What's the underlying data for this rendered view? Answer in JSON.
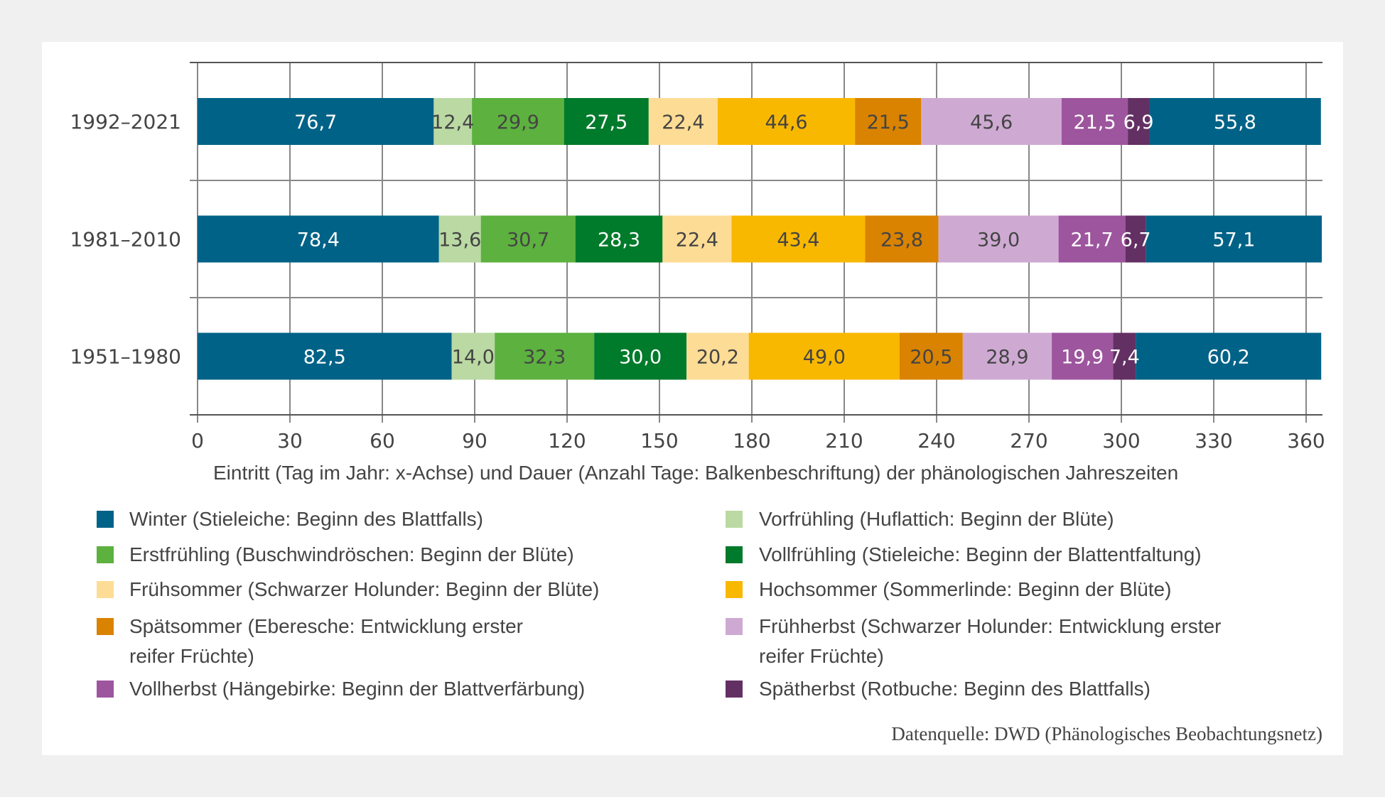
{
  "chart_data": {
    "type": "bar",
    "orientation": "horizontal",
    "stacked": true,
    "categories": [
      "1992–2021",
      "1981–2010",
      "1951–1980"
    ],
    "xlabel": "Eintritt (Tag im Jahr: x-Achse) und Dauer (Anzahl Tage: Balkenbeschriftung) der phänologischen Jahreszeiten",
    "ylabel": "",
    "xlim": [
      0,
      365
    ],
    "xticks": [
      "0",
      "30",
      "60",
      "90",
      "120",
      "150",
      "180",
      "210",
      "240",
      "270",
      "300",
      "330",
      "360"
    ],
    "xtick_values": [
      0,
      30,
      60,
      90,
      120,
      150,
      180,
      210,
      240,
      270,
      300,
      330,
      360
    ],
    "grid": true,
    "legend_position": "bottom",
    "series": [
      {
        "name": "Winter (Stieleiche: Beginn des Blattfalls)",
        "color": "#006287",
        "label_color": "#ffffff",
        "values": [
          76.7,
          78.4,
          82.5
        ],
        "labels": [
          "76,7",
          "78,4",
          "82,5"
        ]
      },
      {
        "name": "Vorfrühling (Huflattich: Beginn der Blüte)",
        "color": "#bad9a3",
        "label_color": "#444444",
        "values": [
          12.4,
          13.6,
          14.0
        ],
        "labels": [
          "12,4",
          "13,6",
          "14,0"
        ]
      },
      {
        "name": "Erstfrühling (Buschwindröschen: Beginn der Blüte)",
        "color": "#5db13f",
        "label_color": "#444444",
        "values": [
          29.9,
          30.7,
          32.3
        ],
        "labels": [
          "29,9",
          "30,7",
          "32,3"
        ]
      },
      {
        "name": "Vollfrühling (Stieleiche: Beginn der Blattentfaltung)",
        "color": "#007a2b",
        "label_color": "#ffffff",
        "values": [
          27.5,
          28.3,
          30.0
        ],
        "labels": [
          "27,5",
          "28,3",
          "30,0"
        ]
      },
      {
        "name": "Frühsommer (Schwarzer Holunder: Beginn der Blüte)",
        "color": "#fddc95",
        "label_color": "#444444",
        "values": [
          22.4,
          22.4,
          20.2
        ],
        "labels": [
          "22,4",
          "22,4",
          "20,2"
        ]
      },
      {
        "name": "Hochsommer (Sommerlinde: Beginn der Blüte)",
        "color": "#f9b800",
        "label_color": "#444444",
        "values": [
          44.6,
          43.4,
          49.0
        ],
        "labels": [
          "44,6",
          "43,4",
          "49,0"
        ]
      },
      {
        "name": "Spätsommer (Eberesche: Entwicklung erster reifer Früchte)",
        "color": "#d98300",
        "label_color": "#444444",
        "values": [
          21.5,
          23.8,
          20.5
        ],
        "labels": [
          "21,5",
          "23,8",
          "20,5"
        ]
      },
      {
        "name": "Frühherbst (Schwarzer Holunder: Entwicklung erster reifer Früchte)",
        "color": "#ceaad3",
        "label_color": "#444444",
        "values": [
          45.6,
          39.0,
          28.9
        ],
        "labels": [
          "45,6",
          "39,0",
          "28,9"
        ]
      },
      {
        "name": "Vollherbst (Hängebirke: Beginn der Blattverfärbung)",
        "color": "#9d559e",
        "label_color": "#ffffff",
        "values": [
          21.5,
          21.7,
          19.9
        ],
        "labels": [
          "21,5",
          "21,7",
          "19,9"
        ]
      },
      {
        "name": "Spätherbst (Rotbuche: Beginn des Blattfalls)",
        "color": "#633063",
        "label_color": "#ffffff",
        "values": [
          6.9,
          6.7,
          7.4
        ],
        "labels": [
          "6,9",
          "6,7",
          "7,4"
        ]
      },
      {
        "name": "Winter (Stieleiche: Beginn des Blattfalls)",
        "color": "#006287",
        "label_color": "#ffffff",
        "values": [
          55.8,
          57.1,
          60.2
        ],
        "labels": [
          "55,8",
          "57,1",
          "60,2"
        ],
        "legend": false
      }
    ],
    "source": "Datenquelle: DWD (Phänologisches Beobachtungsnetz)"
  },
  "legend": {
    "left": [
      {
        "lines": [
          "Winter (Stieleiche: Beginn des Blattfalls)"
        ],
        "color": "#006287"
      },
      {
        "lines": [
          "Erstfrühling (Buschwindröschen: Beginn der Blüte)"
        ],
        "color": "#5db13f"
      },
      {
        "lines": [
          "Frühsommer (Schwarzer Holunder: Beginn der Blüte)"
        ],
        "color": "#fddc95"
      },
      {
        "lines": [
          "Spätsommer (Eberesche: Entwicklung erster",
          "reifer Früchte)"
        ],
        "color": "#d98300"
      },
      {
        "lines": [
          "Vollherbst (Hängebirke: Beginn der Blattverfärbung)"
        ],
        "color": "#9d559e"
      }
    ],
    "right": [
      {
        "lines": [
          "Vorfrühling (Huflattich: Beginn der Blüte)"
        ],
        "color": "#bad9a3"
      },
      {
        "lines": [
          "Vollfrühling (Stieleiche: Beginn der Blattentfaltung)"
        ],
        "color": "#007a2b"
      },
      {
        "lines": [
          "Hochsommer (Sommerlinde: Beginn der Blüte)"
        ],
        "color": "#f9b800"
      },
      {
        "lines": [
          "Frühherbst (Schwarzer Holunder: Entwicklung erster",
          "reifer Früchte)"
        ],
        "color": "#ceaad3"
      },
      {
        "lines": [
          "Spätherbst (Rotbuche: Beginn des Blattfalls)"
        ],
        "color": "#633063"
      }
    ]
  },
  "colors": {
    "background": "#f0f0f0",
    "panel": "#ffffff",
    "text": "#444444",
    "gridline": "#888888",
    "axis": "#555555"
  }
}
